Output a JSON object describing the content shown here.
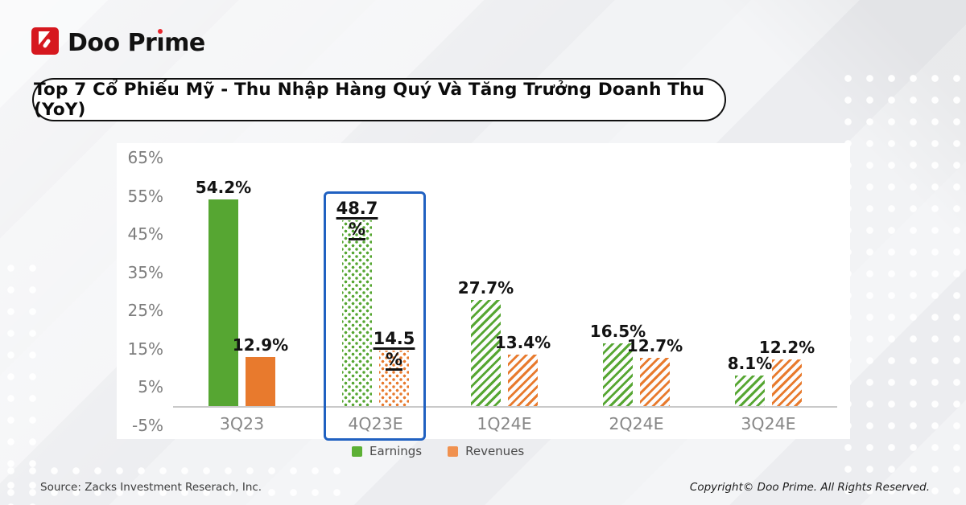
{
  "brand": {
    "name": "Doo Prime",
    "name_before_i": "Doo Pr",
    "name_i": "ı",
    "name_after_i": "me",
    "logo_red": "#d6181f",
    "i_dot_red": "#e8262d"
  },
  "title": "Top 7 Cổ Phiếu Mỹ - Thu Nhập Hàng Quý Và Tăng Trưởng Doanh Thu (YoY)",
  "footer": {
    "source": "Source: Zacks Investment Reserach, Inc.",
    "copyright": "Copyright© Doo Prime. All Rights Reserved."
  },
  "chart_data": {
    "type": "bar",
    "title": "Top 7 Cổ Phiếu Mỹ - Thu Nhập Hàng Quý Và Tăng Trưởng Doanh Thu (YoY)",
    "categories": [
      "3Q23",
      "4Q23E",
      "1Q24E",
      "2Q24E",
      "3Q24E"
    ],
    "series": [
      {
        "name": "Earnings",
        "color": "#56a632",
        "legend_color": "#5cb035",
        "values": [
          54.2,
          48.7,
          27.7,
          16.5,
          8.1
        ]
      },
      {
        "name": "Revenues",
        "color": "#e87a2d",
        "legend_color": "#f0914f",
        "values": [
          12.9,
          14.5,
          13.4,
          12.7,
          12.2
        ]
      }
    ],
    "data_labels": [
      [
        "54.2%",
        "12.9%"
      ],
      [
        "48.7%",
        "14.5%"
      ],
      [
        "27.7%",
        "13.4%"
      ],
      [
        "16.5%",
        "12.7%"
      ],
      [
        "8.1%",
        "12.2%"
      ]
    ],
    "patterns": [
      "solid",
      "dots",
      "hatch",
      "hatch",
      "hatch"
    ],
    "highlight_index": 1,
    "highlight_color": "#2061c1",
    "y_ticks": [
      {
        "label": "65%",
        "value": 65
      },
      {
        "label": "55%",
        "value": 55
      },
      {
        "label": "45%",
        "value": 45
      },
      {
        "label": "35%",
        "value": 35
      },
      {
        "label": "25%",
        "value": 25
      },
      {
        "label": "15%",
        "value": 15
      },
      {
        "label": "5%",
        "value": 5
      },
      {
        "label": "-5%",
        "value": -5
      }
    ],
    "ylim": [
      -5,
      65
    ],
    "grid": false,
    "legend_position": "bottom",
    "xlabel": "",
    "ylabel": ""
  }
}
